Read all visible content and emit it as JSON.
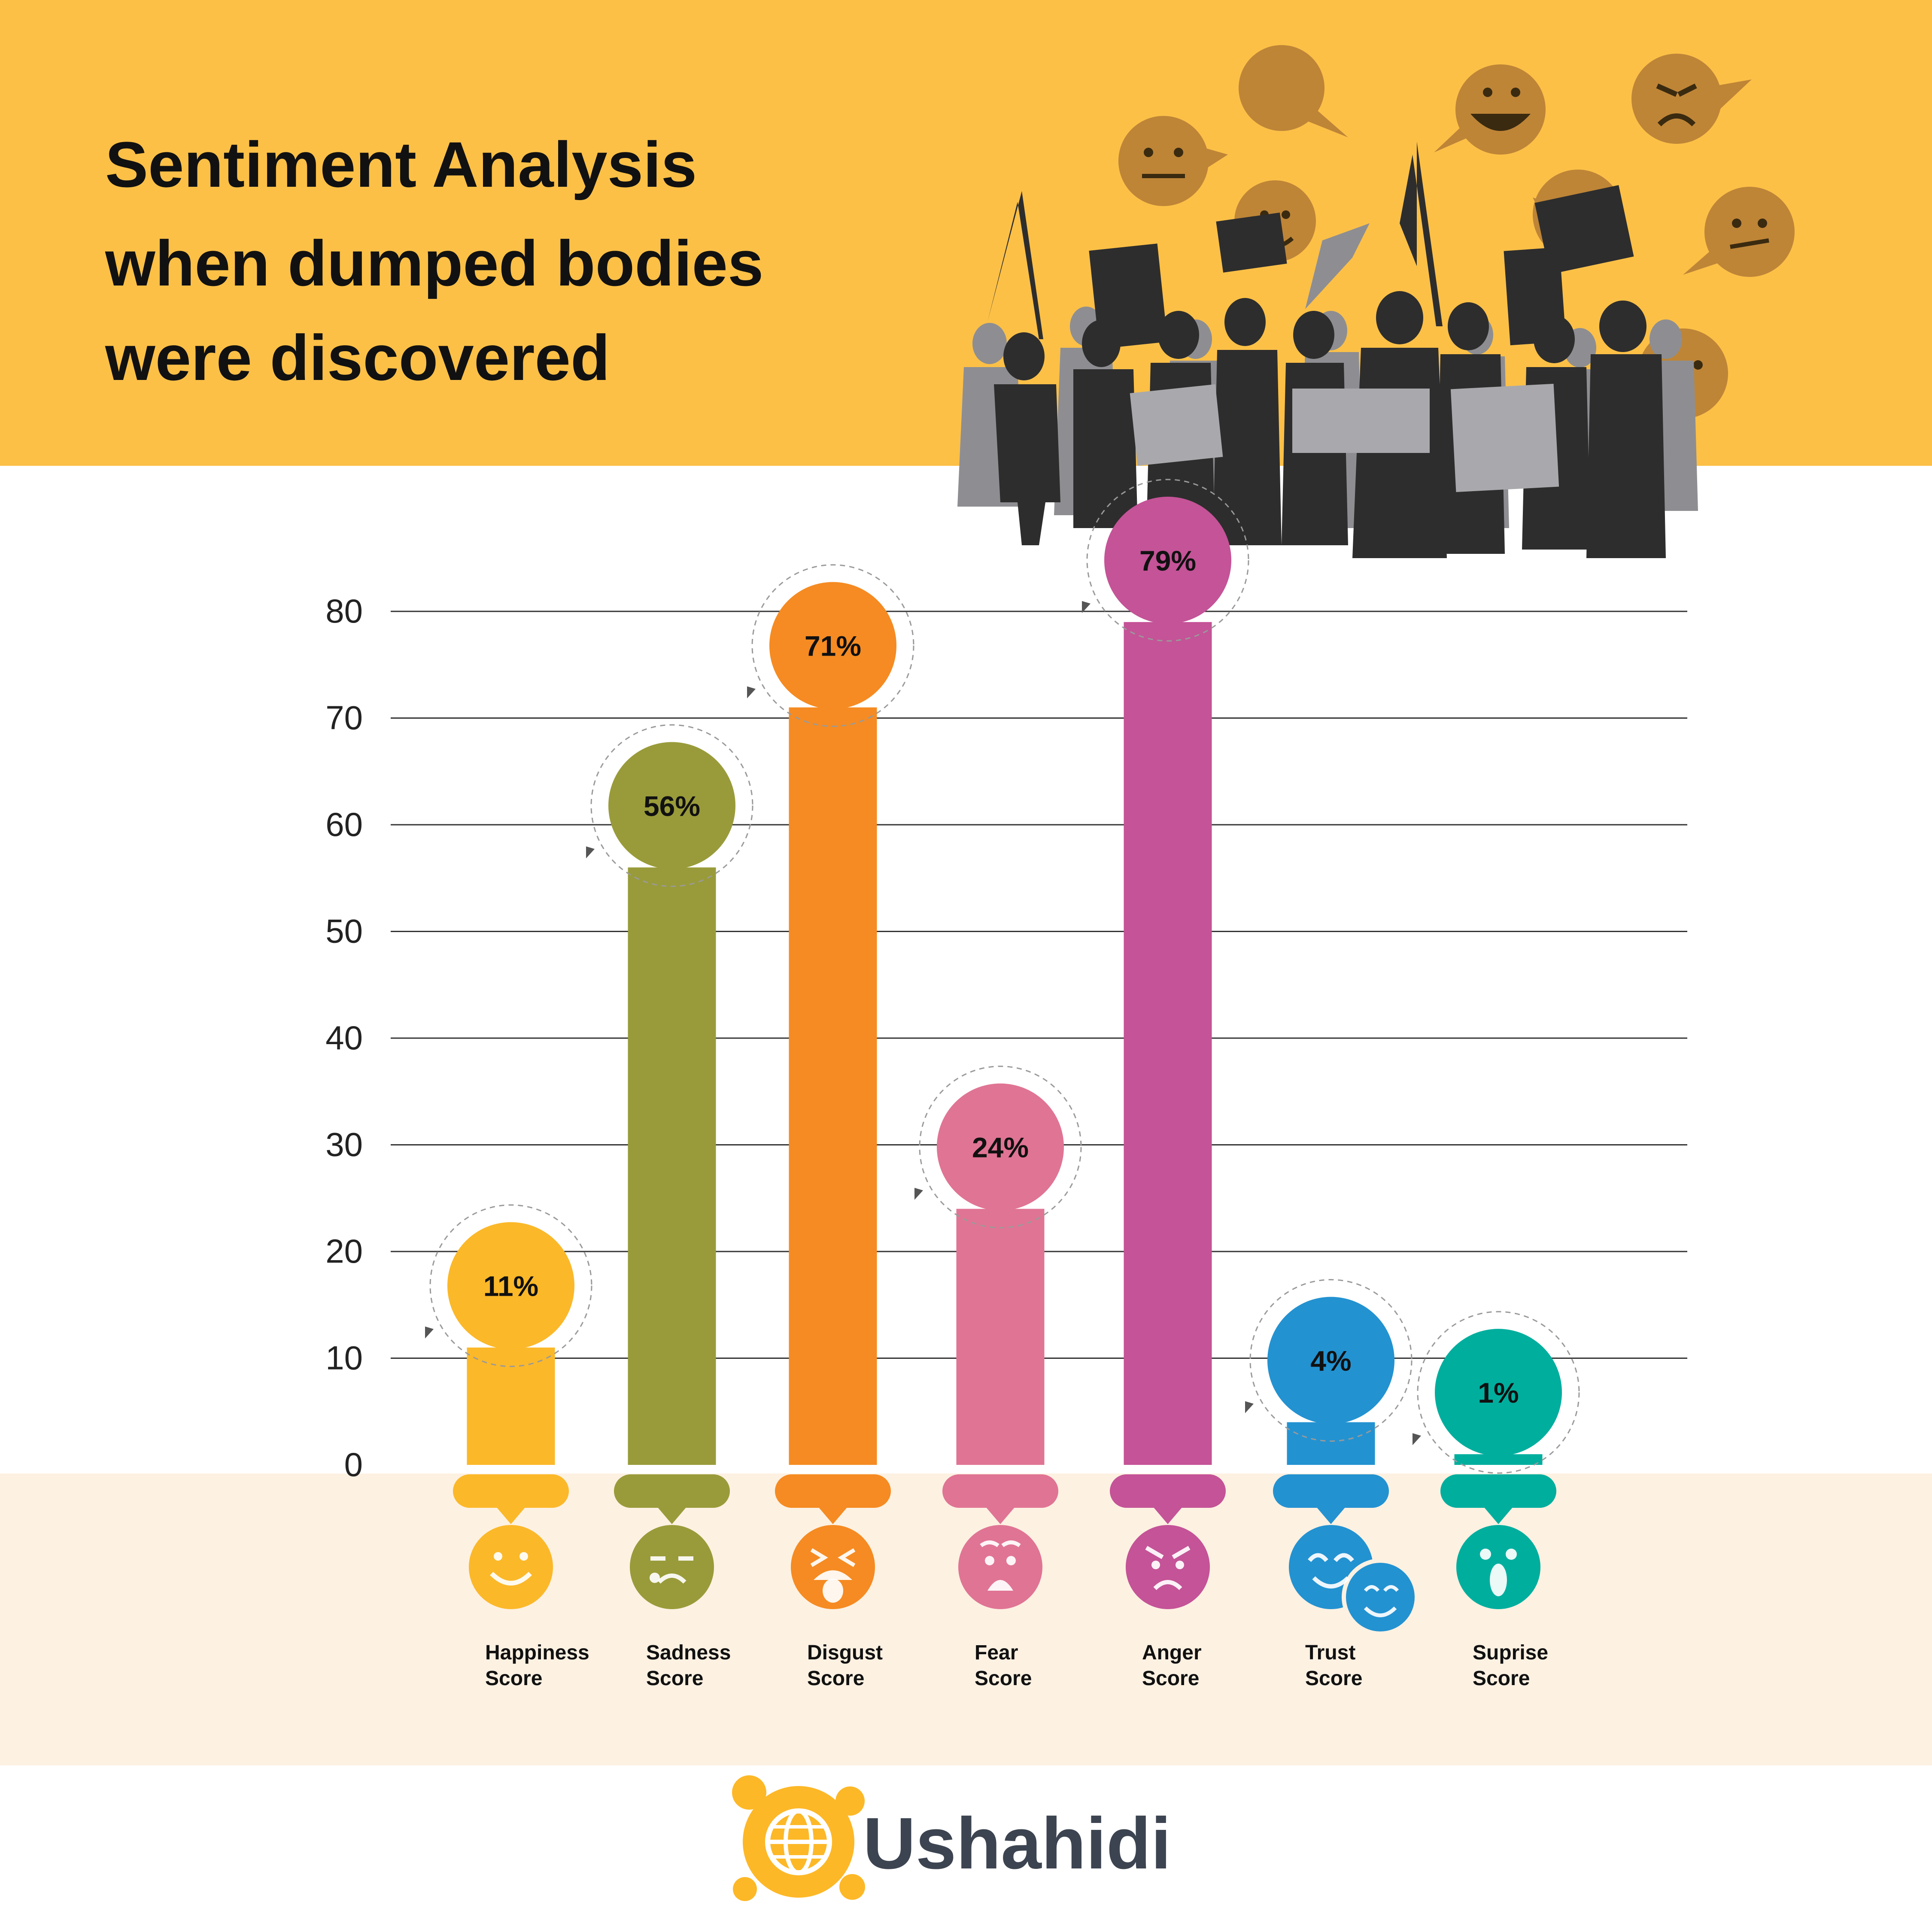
{
  "header": {
    "title_lines": [
      "Sentiment Analysis",
      "when dumped bodies",
      "were discovered"
    ]
  },
  "colors": {
    "header_bg": "#FCC047",
    "footer_band": "#FDF1E2",
    "grid": "#333333",
    "silhouette_dark": "#2d2d2d",
    "silhouette_grey": "#8e8e92",
    "sign_grey": "#a9a9ad",
    "emoji_bubble": "#BE8537",
    "brand": "#3C4451",
    "brand_logo": "#FDB827"
  },
  "chart_data": {
    "type": "bar",
    "categories": [
      "Happiness Score",
      "Sadness Score",
      "Disgust Score",
      "Fear Score",
      "Anger Score",
      "Trust Score",
      "Suprise Score"
    ],
    "category_lines": [
      [
        "Happiness",
        "Score"
      ],
      [
        "Sadness",
        "Score"
      ],
      [
        "Disgust",
        "Score"
      ],
      [
        "Fear",
        "Score"
      ],
      [
        "Anger",
        "Score"
      ],
      [
        "Trust",
        "Score"
      ],
      [
        "Suprise",
        "Score"
      ]
    ],
    "values": [
      11,
      56,
      71,
      24,
      79,
      4,
      1
    ],
    "value_labels": [
      "11%",
      "56%",
      "71%",
      "24%",
      "79%",
      "4%",
      "1%"
    ],
    "colors": [
      "#FBB829",
      "#999B3A",
      "#F58B22",
      "#E07494",
      "#C45397",
      "#2392D1",
      "#00AE9E"
    ],
    "icons": [
      "happy-face-icon",
      "sad-face-icon",
      "disgust-face-icon",
      "fear-face-icon",
      "angry-face-icon",
      "trust-faces-icon",
      "surprise-face-icon"
    ],
    "yticks": [
      "0",
      "10",
      "20",
      "30",
      "40",
      "50",
      "60",
      "70",
      "80"
    ],
    "ylim": [
      0,
      80
    ],
    "grid": true,
    "title": "Sentiment Analysis when dumped bodies were discovered"
  },
  "brand": {
    "name": "Ushahidi",
    "logo_icon": "globe-splash-icon"
  },
  "decor": {
    "crowd_icon": "protest-crowd-icon",
    "bubble_icons": [
      "neutral-face-bubble-icon",
      "neutral-face-bubble-icon",
      "smile-face-bubble-icon",
      "grin-face-bubble-icon",
      "angry-face-bubble-icon",
      "neutral-face-bubble-icon",
      "neutral-face-bubble-icon"
    ]
  }
}
